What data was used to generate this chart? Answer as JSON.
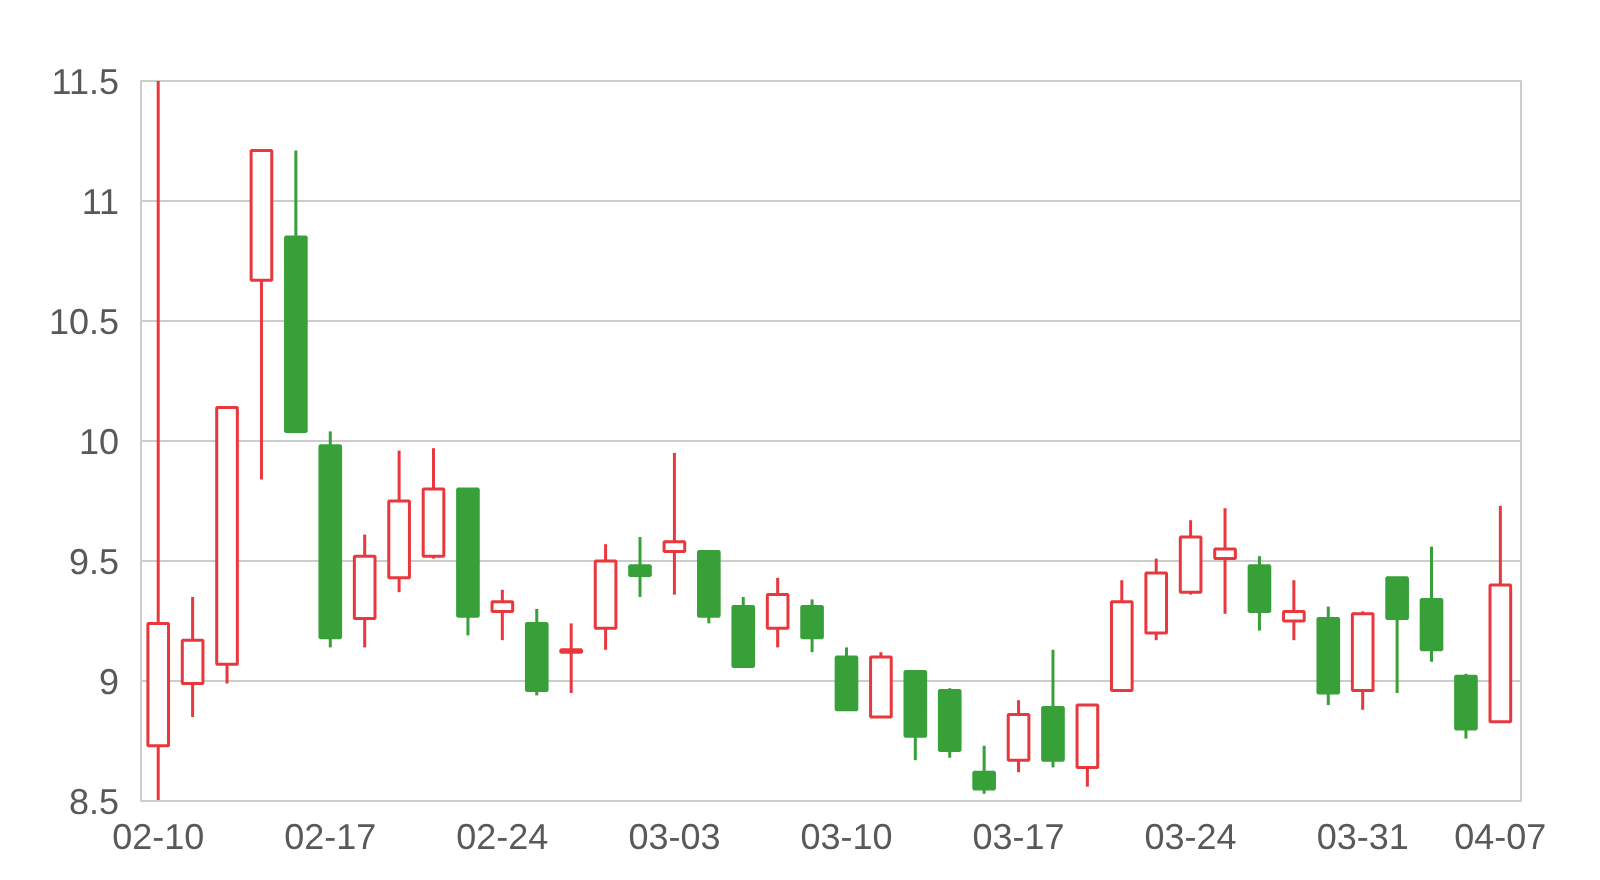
{
  "chart_data": {
    "type": "candlestick",
    "categories": [
      "02-10",
      null,
      null,
      null,
      null,
      "02-17",
      null,
      null,
      null,
      null,
      "02-24",
      null,
      null,
      null,
      null,
      "03-03",
      null,
      null,
      null,
      null,
      "03-10",
      null,
      null,
      null,
      null,
      "03-17",
      null,
      null,
      null,
      null,
      "03-24",
      null,
      null,
      null,
      null,
      "03-31",
      null,
      null,
      null,
      "04-07"
    ],
    "ohlc": [
      [
        8.73,
        11.5,
        8.5,
        9.24
      ],
      [
        8.99,
        9.35,
        8.85,
        9.17
      ],
      [
        9.07,
        10.14,
        8.99,
        10.14
      ],
      [
        10.67,
        11.21,
        9.84,
        11.21
      ],
      [
        10.85,
        11.21,
        10.04,
        10.04
      ],
      [
        9.98,
        10.04,
        9.14,
        9.18
      ],
      [
        9.26,
        9.61,
        9.14,
        9.52
      ],
      [
        9.43,
        9.96,
        9.37,
        9.75
      ],
      [
        9.52,
        9.97,
        9.51,
        9.8
      ],
      [
        9.8,
        9.8,
        9.19,
        9.27
      ],
      [
        9.29,
        9.38,
        9.17,
        9.33
      ],
      [
        9.24,
        9.3,
        8.94,
        8.96
      ],
      [
        9.12,
        9.24,
        8.95,
        9.13
      ],
      [
        9.22,
        9.57,
        9.13,
        9.5
      ],
      [
        9.48,
        9.6,
        9.35,
        9.44
      ],
      [
        9.54,
        9.95,
        9.36,
        9.58
      ],
      [
        9.54,
        9.54,
        9.24,
        9.27
      ],
      [
        9.31,
        9.35,
        9.06,
        9.06
      ],
      [
        9.22,
        9.43,
        9.14,
        9.36
      ],
      [
        9.31,
        9.34,
        9.12,
        9.18
      ],
      [
        9.1,
        9.14,
        8.88,
        8.88
      ],
      [
        8.85,
        9.12,
        8.85,
        9.1
      ],
      [
        9.04,
        9.04,
        8.67,
        8.77
      ],
      [
        8.96,
        8.97,
        8.68,
        8.71
      ],
      [
        8.62,
        8.73,
        8.53,
        8.55
      ],
      [
        8.67,
        8.92,
        8.62,
        8.86
      ],
      [
        8.89,
        9.13,
        8.64,
        8.67
      ],
      [
        8.64,
        8.9,
        8.56,
        8.9
      ],
      [
        8.96,
        9.42,
        8.96,
        9.33
      ],
      [
        9.2,
        9.51,
        9.17,
        9.45
      ],
      [
        9.37,
        9.67,
        9.36,
        9.6
      ],
      [
        9.51,
        9.72,
        9.28,
        9.55
      ],
      [
        9.48,
        9.52,
        9.21,
        9.29
      ],
      [
        9.25,
        9.42,
        9.17,
        9.29
      ],
      [
        9.26,
        9.31,
        8.9,
        8.95
      ],
      [
        8.96,
        9.29,
        8.88,
        9.28
      ],
      [
        9.43,
        9.43,
        8.95,
        9.26
      ],
      [
        9.34,
        9.56,
        9.08,
        9.13
      ],
      [
        9.02,
        9.03,
        8.76,
        8.8
      ],
      [
        8.83,
        9.73,
        8.83,
        9.4
      ]
    ],
    "colors": [
      "#e8383d",
      "#e8383d",
      "#e8383d",
      "#e8383d",
      "#38a038",
      "#38a038",
      "#e8383d",
      "#e8383d",
      "#e8383d",
      "#38a038",
      "#e8383d",
      "#38a038",
      "#e8383d",
      "#e8383d",
      "#38a038",
      "#e8383d",
      "#38a038",
      "#38a038",
      "#e8383d",
      "#38a038",
      "#38a038",
      "#e8383d",
      "#38a038",
      "#38a038",
      "#38a038",
      "#e8383d",
      "#38a038",
      "#e8383d",
      "#e8383d",
      "#e8383d",
      "#e8383d",
      "#e8383d",
      "#38a038",
      "#e8383d",
      "#38a038",
      "#e8383d",
      "#38a038",
      "#38a038",
      "#38a038",
      "#e8383d"
    ],
    "ylim": [
      8.5,
      11.5
    ],
    "yticks": [
      8.5,
      9,
      9.5,
      10,
      10.5,
      11,
      11.5
    ],
    "grid": "y"
  }
}
